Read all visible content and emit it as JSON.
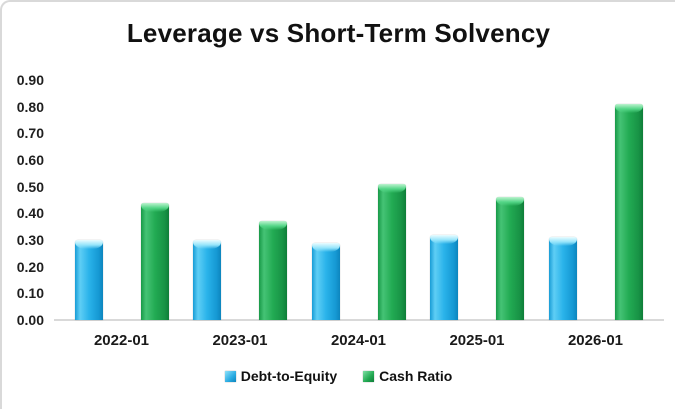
{
  "window": {
    "background": "#ffffff",
    "frame_border_color": "#d9d9d9",
    "axis_line_color": "#d9d9d9",
    "text_color": "#111111"
  },
  "chart_data": {
    "type": "bar",
    "title": "Leverage vs Short-Term Solvency",
    "categories": [
      "2022-01",
      "2023-01",
      "2024-01",
      "2025-01",
      "2026-01"
    ],
    "series": [
      {
        "name": "Debt-to-Equity",
        "color": "#29ABE2",
        "values": [
          0.3,
          0.3,
          0.29,
          0.32,
          0.31
        ]
      },
      {
        "name": "Cash Ratio",
        "color": "#21A851",
        "values": [
          0.44,
          0.37,
          0.51,
          0.46,
          0.81
        ]
      }
    ],
    "xlabel": "",
    "ylabel": "",
    "ylim": [
      0.0,
      0.9
    ],
    "y_tick_step": 0.1,
    "y_tick_labels": [
      "0.00",
      "0.10",
      "0.20",
      "0.30",
      "0.40",
      "0.50",
      "0.60",
      "0.70",
      "0.80",
      "0.90"
    ],
    "grid": false,
    "legend_position": "bottom"
  }
}
